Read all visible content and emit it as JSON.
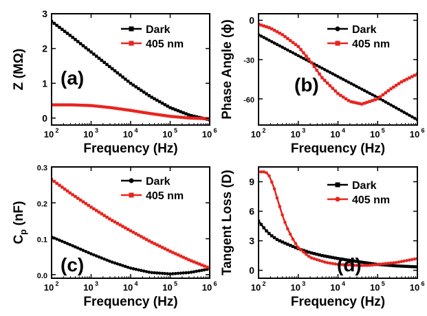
{
  "colors": {
    "dark": "#000000",
    "light405": "#e8241f",
    "axis": "#000000"
  },
  "chart_data": [
    {
      "panel_label": "(a)",
      "type": "line",
      "xlabel": "Frequency (Hz)",
      "ylabel": "Z (MΩ)",
      "xscale": "log",
      "xlim": [
        100,
        1000000
      ],
      "ylim": [
        -0.2,
        3.0
      ],
      "x_ticks": [
        100,
        1000,
        10000,
        100000,
        1000000
      ],
      "x_tick_labels": [
        "10",
        "10",
        "10",
        "10",
        "10"
      ],
      "x_tick_exponents": [
        "2",
        "3",
        "4",
        "5",
        "6"
      ],
      "y_ticks": [
        0,
        1,
        2,
        3
      ],
      "y_tick_labels": [
        "0",
        "1",
        "2",
        "3"
      ],
      "legend_position": "top-right",
      "series": [
        {
          "name": "Dark",
          "marker": "square",
          "x": [
            100,
            316,
            1000,
            3162,
            10000,
            31623,
            100000,
            316228,
            1000000
          ],
          "values": [
            2.78,
            2.35,
            1.9,
            1.45,
            1.0,
            0.62,
            0.3,
            0.08,
            -0.05
          ]
        },
        {
          "name": "405 nm",
          "marker": "square",
          "x": [
            100,
            316,
            1000,
            3162,
            10000,
            31623,
            100000,
            316228,
            1000000
          ],
          "values": [
            0.38,
            0.38,
            0.36,
            0.3,
            0.22,
            0.13,
            0.05,
            0.0,
            -0.02
          ]
        }
      ]
    },
    {
      "panel_label": "(b)",
      "type": "line",
      "xlabel": "Frequency (Hz)",
      "ylabel": "Phase Angle (ϕ)",
      "xscale": "log",
      "xlim": [
        100,
        1000000
      ],
      "ylim": [
        -80,
        5
      ],
      "x_ticks": [
        100,
        1000,
        10000,
        100000,
        1000000
      ],
      "x_tick_labels": [
        "10",
        "10",
        "10",
        "10",
        "10"
      ],
      "x_tick_exponents": [
        "2",
        "3",
        "4",
        "5",
        "6"
      ],
      "y_ticks": [
        0,
        -30,
        -60
      ],
      "y_tick_labels": [
        "0",
        "-30",
        "-60"
      ],
      "legend_position": "top-right",
      "series": [
        {
          "name": "Dark",
          "marker": "circle",
          "x": [
            100,
            1000,
            10000,
            100000,
            1000000
          ],
          "values": [
            -11,
            -27,
            -43,
            -59,
            -76
          ]
        },
        {
          "name": "405 nm",
          "marker": "square",
          "x": [
            100,
            200,
            400,
            1000,
            2000,
            4000,
            10000,
            20000,
            40000,
            100000,
            200000,
            400000,
            1000000
          ],
          "values": [
            -3,
            -6,
            -11,
            -20,
            -31,
            -44,
            -56,
            -62,
            -64,
            -60,
            -53,
            -47,
            -41
          ]
        }
      ]
    },
    {
      "panel_label": "(c)",
      "type": "line",
      "xlabel": "Frequency (Hz)",
      "ylabel": "C",
      "ylabel_sub": "p",
      "ylabel_unit": " (nF)",
      "xscale": "log",
      "xlim": [
        100,
        1000000
      ],
      "ylim": [
        -0.01,
        0.3
      ],
      "x_ticks": [
        100,
        1000,
        10000,
        100000,
        1000000
      ],
      "x_tick_labels": [
        "10",
        "10",
        "10",
        "10",
        "10"
      ],
      "x_tick_exponents": [
        "2",
        "3",
        "4",
        "5",
        "6"
      ],
      "y_ticks": [
        0.0,
        0.1,
        0.2,
        0.3
      ],
      "y_tick_labels": [
        "0.0",
        "0.1",
        "0.2",
        "0.3"
      ],
      "legend_position": "top-right",
      "series": [
        {
          "name": "Dark",
          "marker": "circle",
          "x": [
            100,
            316,
            1000,
            3162,
            10000,
            31623,
            100000,
            316228,
            1000000
          ],
          "values": [
            0.105,
            0.082,
            0.058,
            0.036,
            0.018,
            0.006,
            0.002,
            0.006,
            0.016
          ]
        },
        {
          "name": "405 nm",
          "marker": "square",
          "x": [
            100,
            316,
            1000,
            3162,
            10000,
            31623,
            100000,
            316228,
            1000000
          ],
          "values": [
            0.265,
            0.225,
            0.188,
            0.153,
            0.122,
            0.092,
            0.065,
            0.04,
            0.018
          ]
        }
      ]
    },
    {
      "panel_label": "(d)",
      "type": "line",
      "xlabel": "Frequency (Hz)",
      "ylabel": "Tangent Loss (D)",
      "xscale": "log",
      "xlim": [
        100,
        1000000
      ],
      "ylim": [
        -0.8,
        10.5
      ],
      "x_ticks": [
        100,
        1000,
        10000,
        100000,
        1000000
      ],
      "x_tick_labels": [
        "10",
        "10",
        "10",
        "10",
        "10"
      ],
      "x_tick_exponents": [
        "2",
        "3",
        "4",
        "5",
        "6"
      ],
      "y_ticks": [
        0,
        3,
        6,
        9
      ],
      "y_tick_labels": [
        "0",
        "3",
        "6",
        "9"
      ],
      "legend_position": "top-right",
      "series": [
        {
          "name": "Dark",
          "marker": "square",
          "x": [
            100,
            150,
            200,
            300,
            500,
            1000,
            2000,
            4000,
            10000,
            30000,
            100000,
            300000,
            1000000
          ],
          "values": [
            5.0,
            4.1,
            3.6,
            3.1,
            2.7,
            2.2,
            1.8,
            1.5,
            1.2,
            0.9,
            0.6,
            0.45,
            0.35
          ]
        },
        {
          "name": "405 nm",
          "marker": "circle",
          "x": [
            100,
            120,
            140,
            160,
            180,
            200,
            250,
            300,
            400,
            500,
            700,
            1000,
            2000,
            5000,
            10000,
            30000,
            60000,
            100000,
            300000,
            1000000
          ],
          "values": [
            10.0,
            10.0,
            10.0,
            9.9,
            9.7,
            9.3,
            8.3,
            7.2,
            5.6,
            4.5,
            3.3,
            2.3,
            1.3,
            0.8,
            0.6,
            0.5,
            0.5,
            0.6,
            0.8,
            1.2
          ]
        }
      ]
    }
  ]
}
